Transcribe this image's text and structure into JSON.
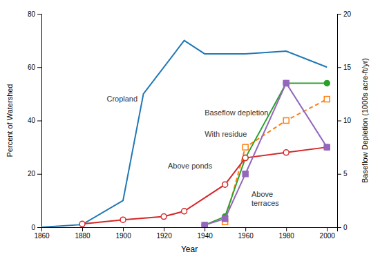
{
  "chart_data": {
    "type": "line",
    "xlabel": "Year",
    "ylabel": "Percent of Watershed",
    "y2label": "Baseflow Depletion (1000s acre-ft/yr)",
    "xlim": [
      1860,
      2005
    ],
    "xticks": [
      1860,
      1880,
      1900,
      1920,
      1940,
      1960,
      1980,
      2000
    ],
    "ylim": [
      0,
      80
    ],
    "yticks": [
      0,
      20,
      40,
      60,
      80
    ],
    "y2lim": [
      0,
      20
    ],
    "y2ticks": [
      0,
      5,
      10,
      15,
      20
    ],
    "series": [
      {
        "x": [
          1860,
          1880,
          1900,
          1910,
          1930,
          1940,
          1950,
          1960,
          1980,
          2000
        ],
        "values": [
          0,
          1,
          10,
          50,
          70,
          65,
          65,
          65,
          66,
          60
        ],
        "line_style": "solid"
      },
      {
        "x": [
          1950,
          1960,
          1980,
          2000
        ],
        "values": [
          0.5,
          7.5,
          10.0,
          12.0
        ],
        "axis": "y2",
        "line_style": "dashed",
        "marker": "square-open"
      },
      {
        "x": [
          1940,
          1950,
          1960,
          1980,
          2000
        ],
        "values": [
          0.2,
          1.0,
          6.5,
          13.5,
          13.5
        ],
        "axis": "y2",
        "line_style": "solid",
        "marker": "circle"
      },
      {
        "x": [
          1880,
          1900,
          1920,
          1930,
          1950,
          1960,
          1980,
          2000
        ],
        "values": [
          0.3,
          0.7,
          1.0,
          1.5,
          4.0,
          6.5,
          7.0,
          7.5
        ],
        "axis": "y2",
        "line_style": "solid",
        "marker": "circle-open"
      },
      {
        "x": [
          1940,
          1950,
          1960,
          1980,
          2000
        ],
        "values": [
          0.2,
          0.8,
          5.0,
          13.5,
          7.5
        ],
        "axis": "y2",
        "line_style": "solid",
        "marker": "square"
      }
    ],
    "annotations": [
      {
        "text": "Cropland",
        "x": 1892,
        "y": 47
      },
      {
        "text": "Baseflow depletion",
        "x": 1940,
        "y": 10.5,
        "axis": "y2"
      },
      {
        "text": "With residue",
        "x": 1940,
        "y": 8.5,
        "axis": "y2"
      },
      {
        "text": "Above ponds",
        "x": 1922,
        "y": 5.5,
        "axis": "y2"
      },
      {
        "text": "Above\nterraces",
        "x": 1963,
        "y": 2.0,
        "axis": "y2"
      }
    ]
  }
}
